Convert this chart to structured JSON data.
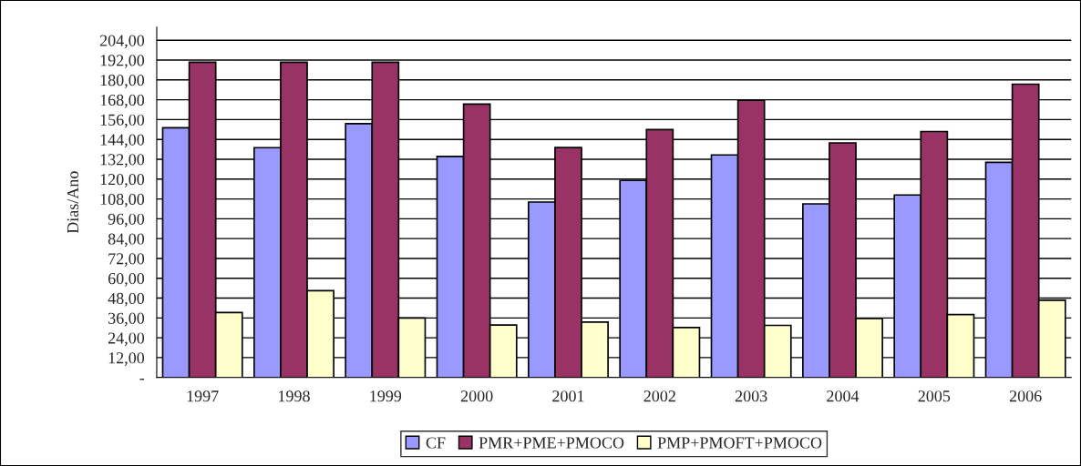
{
  "chart_data": {
    "type": "bar",
    "ylabel": "Dias/Ano",
    "categories": [
      "1997",
      "1998",
      "1999",
      "2000",
      "2001",
      "2002",
      "2003",
      "2004",
      "2005",
      "2006"
    ],
    "series": [
      {
        "name": "CF",
        "color": "#9999ff",
        "values": [
          151.1,
          139.0,
          153.5,
          133.7,
          106.1,
          119.2,
          134.6,
          105.0,
          110.4,
          130.1
        ]
      },
      {
        "name": "PMR+PME+PMOCO",
        "color": "#993366",
        "values": [
          190.7,
          190.7,
          190.7,
          165.4,
          139.1,
          150.0,
          167.7,
          141.9,
          148.8,
          177.4
        ]
      },
      {
        "name": "PMP+PMOFT+PMOCO",
        "color": "#ffffcc",
        "values": [
          39.3,
          52.5,
          36.0,
          31.7,
          33.5,
          30.2,
          31.5,
          35.7,
          38.0,
          46.7
        ]
      }
    ],
    "ylim": [
      0,
      212
    ],
    "yticks": [
      {
        "value": 0,
        "label": "-"
      },
      {
        "value": 12,
        "label": "12,00"
      },
      {
        "value": 24,
        "label": "24,00"
      },
      {
        "value": 36,
        "label": "36,00"
      },
      {
        "value": 48,
        "label": "48,00"
      },
      {
        "value": 60,
        "label": "60,00"
      },
      {
        "value": 72,
        "label": "72,00"
      },
      {
        "value": 84,
        "label": "84,00"
      },
      {
        "value": 96,
        "label": "96,00"
      },
      {
        "value": 108,
        "label": "108,00"
      },
      {
        "value": 120,
        "label": "120,00"
      },
      {
        "value": 132,
        "label": "132,00"
      },
      {
        "value": 144,
        "label": "144,00"
      },
      {
        "value": 156,
        "label": "156,00"
      },
      {
        "value": 168,
        "label": "168,00"
      },
      {
        "value": 180,
        "label": "180,00"
      },
      {
        "value": 192,
        "label": "192,00"
      },
      {
        "value": 204,
        "label": "204,00"
      }
    ],
    "grid": "y",
    "legend": "bottom"
  }
}
